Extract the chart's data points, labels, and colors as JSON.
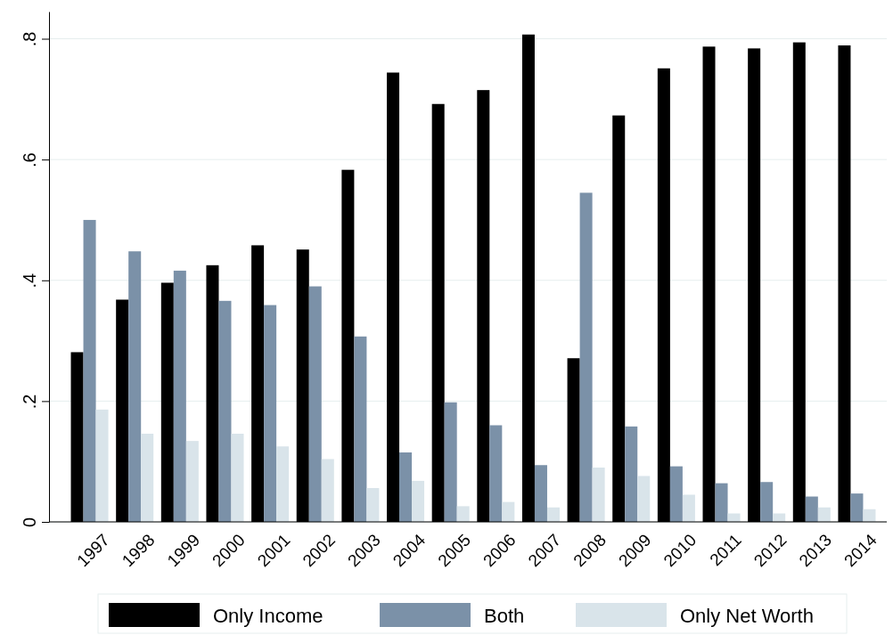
{
  "chart_data": {
    "type": "bar",
    "categories": [
      "1997",
      "1998",
      "1999",
      "2000",
      "2001",
      "2002",
      "2003",
      "2004",
      "2005",
      "2006",
      "2007",
      "2008",
      "2009",
      "2010",
      "2011",
      "2012",
      "2013",
      "2014"
    ],
    "series": [
      {
        "name": "Only Income",
        "color": "#000000",
        "values": [
          0.281,
          0.368,
          0.396,
          0.425,
          0.458,
          0.451,
          0.583,
          0.744,
          0.692,
          0.715,
          0.807,
          0.271,
          0.673,
          0.751,
          0.787,
          0.784,
          0.794,
          0.789
        ]
      },
      {
        "name": "Both",
        "color": "#7b91a8",
        "values": [
          0.5,
          0.448,
          0.416,
          0.366,
          0.359,
          0.39,
          0.307,
          0.115,
          0.198,
          0.16,
          0.094,
          0.545,
          0.158,
          0.092,
          0.064,
          0.066,
          0.042,
          0.047
        ]
      },
      {
        "name": "Only Net Worth",
        "color": "#d9e4ea",
        "values": [
          0.186,
          0.146,
          0.134,
          0.146,
          0.125,
          0.104,
          0.056,
          0.068,
          0.026,
          0.033,
          0.024,
          0.09,
          0.076,
          0.045,
          0.014,
          0.014,
          0.024,
          0.021
        ]
      }
    ],
    "ylim": [
      0,
      0.845
    ],
    "yticks": [
      {
        "value": 0,
        "label": "0"
      },
      {
        "value": 0.2,
        "label": ".2"
      },
      {
        "value": 0.4,
        "label": ".4"
      },
      {
        "value": 0.6,
        "label": ".6"
      },
      {
        "value": 0.8,
        "label": ".8"
      }
    ],
    "grid": "y",
    "legend": "bottom"
  }
}
